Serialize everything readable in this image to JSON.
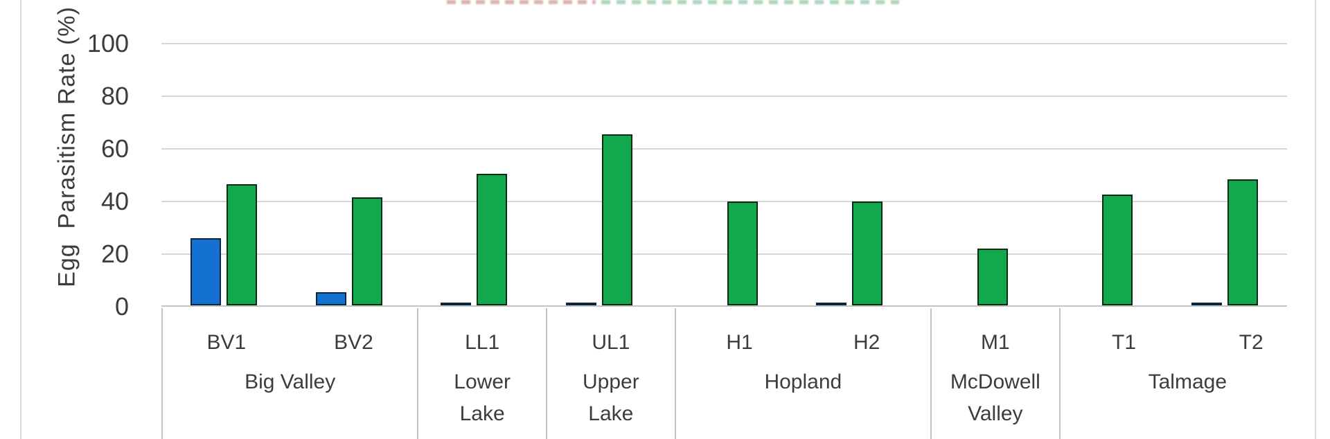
{
  "clipped_title": {
    "left_fragment_color": "#b0584c",
    "right_fragment_color": "#4fa468"
  },
  "colors": {
    "background": "#ffffff",
    "gridline": "#d6d6d6",
    "axis_line": "#c4c4c4",
    "chart_border": "#d9d9d9",
    "label_text": "#3c3c3c",
    "series_blue_fill": "#1470d1",
    "series_blue_border": "#0b2740",
    "series_green_fill": "#12a84d",
    "series_green_border": "#0a2b12"
  },
  "chart_data": {
    "type": "bar",
    "title": "",
    "ylabel": "Egg  Parasitism Rate (%)",
    "xlabel": "",
    "ylim": [
      0,
      100
    ],
    "y_ticks": [
      0,
      20,
      40,
      60,
      80,
      100
    ],
    "grid": true,
    "legend_position": "cut off (not visible)",
    "categories": [
      "BV1",
      "BV2",
      "LL1",
      "UL1",
      "H1",
      "H2",
      "M1",
      "T1",
      "T2"
    ],
    "groups": [
      {
        "label": "Big Valley",
        "span": 2
      },
      {
        "label": "Lower Lake",
        "span": 1
      },
      {
        "label": "Upper Lake",
        "span": 1
      },
      {
        "label": "Hopland",
        "span": 2
      },
      {
        "label": "McDowell Valley",
        "span": 1
      },
      {
        "label": "Talmage",
        "span": 2
      }
    ],
    "series": [
      {
        "name": "blue",
        "values": [
          25.5,
          5,
          1,
          1,
          0,
          1,
          0,
          0,
          1
        ]
      },
      {
        "name": "green",
        "values": [
          46,
          41,
          50,
          65,
          39.5,
          39.5,
          21.5,
          42,
          48
        ]
      }
    ]
  }
}
